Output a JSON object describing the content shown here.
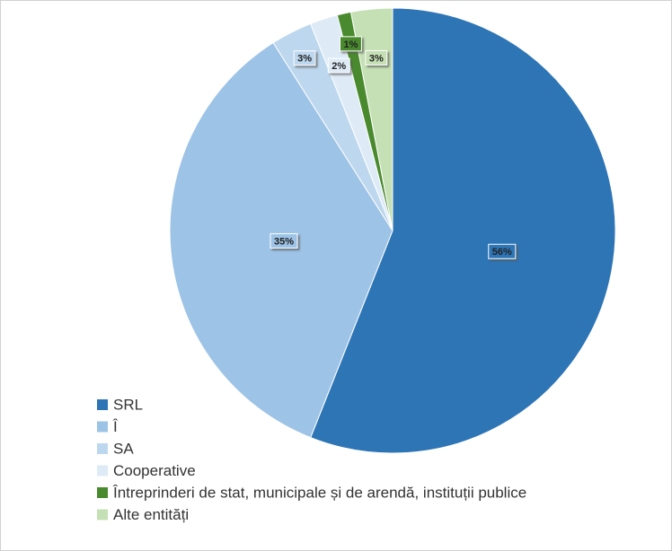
{
  "chart_data": {
    "type": "pie",
    "categories": [
      "SRL",
      "Î",
      "SA",
      "Cooperative",
      "Întreprinderi de stat, municipale și de arendă, instituții publice",
      "Alte entități"
    ],
    "values": [
      56,
      35,
      3,
      2,
      1,
      3
    ],
    "value_labels": [
      "56%",
      "35%",
      "3%",
      "2%",
      "1%",
      "3%"
    ],
    "colors": [
      "#2e75b6",
      "#9dc3e6",
      "#bdd7ee",
      "#deebf7",
      "#4a8a2e",
      "#c5e0b4"
    ],
    "legend": "bottom-left"
  }
}
